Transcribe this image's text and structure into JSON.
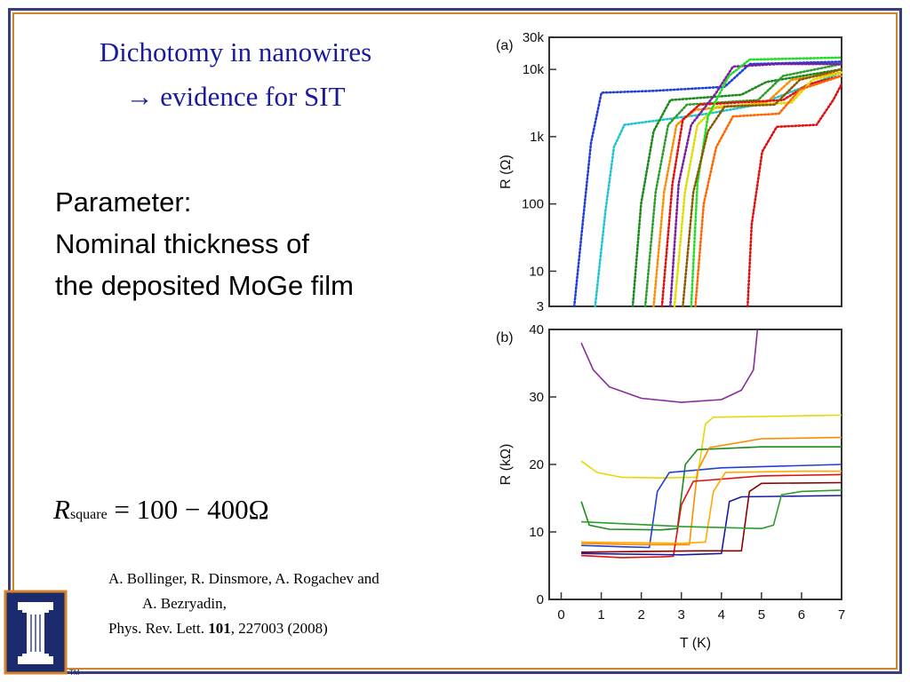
{
  "slide": {
    "title_line1": "Dichotomy in nanowires",
    "title_arrow": "→",
    "title_line2": "evidence for SIT",
    "param_line1": "Parameter:",
    "param_line2": "Nominal thickness of",
    "param_line3": "the deposited MoGe film",
    "formula_R": "R",
    "formula_sub": "square",
    "formula_rest": " = 100 − 400Ω",
    "cite_line1": "A. Bollinger, R. Dinsmore, A. Rogachev and",
    "cite_line2": "A. Bezryadin,",
    "cite_journal": "Phys. Rev. Lett. ",
    "cite_volume": "101",
    "cite_pages": ", 227003 (2008)",
    "logo_tm": "TM"
  },
  "colors": {
    "frame_outer": "#3a3d7a",
    "frame_inner": "#d2842a",
    "title": "#1a1aa0",
    "logo_bg": "#1c2a6e",
    "logo_fg": "#ffffff"
  },
  "chart_data": [
    {
      "type": "line",
      "panel_label": "(a)",
      "xlabel": "",
      "ylabel": "R  (Ω)",
      "yscale": "log",
      "ylim": [
        3,
        30000
      ],
      "xlim": [
        0,
        7
      ],
      "ytick_labels": [
        "30k",
        "10k",
        "1k",
        "100",
        "10",
        "3"
      ],
      "ytick_values": [
        30000,
        10000,
        1000,
        100,
        10,
        3
      ],
      "series": [
        {
          "color": "#1f3fd8",
          "values": [
            [
              0.6,
              3
            ],
            [
              0.8,
              50
            ],
            [
              1.0,
              800
            ],
            [
              1.25,
              4500
            ],
            [
              2.5,
              4800
            ],
            [
              4.2,
              5500
            ],
            [
              4.8,
              12000
            ],
            [
              7,
              13000
            ]
          ]
        },
        {
          "color": "#1fc4d4",
          "values": [
            [
              1.1,
              3
            ],
            [
              1.35,
              80
            ],
            [
              1.55,
              700
            ],
            [
              1.8,
              1500
            ],
            [
              3.8,
              2200
            ],
            [
              5.0,
              3000
            ],
            [
              7,
              9000
            ]
          ]
        },
        {
          "color": "#1a8a1a",
          "values": [
            [
              2.0,
              3
            ],
            [
              2.2,
              100
            ],
            [
              2.5,
              1200
            ],
            [
              2.9,
              3500
            ],
            [
              4.6,
              4200
            ],
            [
              5.2,
              6500
            ],
            [
              7,
              10000
            ]
          ]
        },
        {
          "color": "#2c9e2c",
          "values": [
            [
              2.3,
              3
            ],
            [
              2.55,
              150
            ],
            [
              2.85,
              1500
            ],
            [
              3.3,
              3000
            ],
            [
              5.0,
              3500
            ],
            [
              5.6,
              8000
            ],
            [
              7,
              12000
            ]
          ]
        },
        {
          "color": "#ff8c00",
          "values": [
            [
              2.5,
              3
            ],
            [
              2.75,
              150
            ],
            [
              3.05,
              1500
            ],
            [
              3.5,
              2500
            ],
            [
              5.2,
              3200
            ],
            [
              5.8,
              7000
            ],
            [
              7,
              9000
            ]
          ]
        },
        {
          "color": "#e01010",
          "values": [
            [
              2.7,
              3
            ],
            [
              2.95,
              200
            ],
            [
              3.2,
              1800
            ],
            [
              3.6,
              3000
            ],
            [
              5.6,
              3500
            ],
            [
              6.2,
              6000
            ],
            [
              7,
              8000
            ]
          ]
        },
        {
          "color": "#dddd00",
          "values": [
            [
              3.0,
              3
            ],
            [
              3.25,
              150
            ],
            [
              3.55,
              1500
            ],
            [
              4.0,
              2800
            ],
            [
              5.8,
              3200
            ],
            [
              6.3,
              7000
            ],
            [
              7,
              9000
            ]
          ]
        },
        {
          "color": "#7a1fa0",
          "values": [
            [
              2.9,
              3
            ],
            [
              3.1,
              200
            ],
            [
              3.4,
              1500
            ],
            [
              4.0,
              4500
            ],
            [
              4.4,
              11000
            ],
            [
              5.5,
              12000
            ],
            [
              7,
              12000
            ]
          ]
        },
        {
          "color": "#22dd22",
          "values": [
            [
              3.4,
              3
            ],
            [
              3.55,
              200
            ],
            [
              3.8,
              2000
            ],
            [
              4.3,
              8000
            ],
            [
              4.8,
              14000
            ],
            [
              7,
              15000
            ]
          ]
        },
        {
          "color": "#ff6600",
          "values": [
            [
              3.5,
              3
            ],
            [
              3.7,
              100
            ],
            [
              4.0,
              700
            ],
            [
              4.4,
              2000
            ],
            [
              5.5,
              2200
            ],
            [
              6.0,
              5000
            ],
            [
              7,
              8000
            ]
          ]
        },
        {
          "color": "#8b5a00",
          "values": [
            [
              3.2,
              3
            ],
            [
              3.45,
              150
            ],
            [
              3.8,
              1200
            ],
            [
              4.2,
              2800
            ],
            [
              5.4,
              3000
            ],
            [
              6.0,
              7000
            ],
            [
              7,
              10000
            ]
          ]
        },
        {
          "color": "#e01010",
          "values": [
            [
              4.75,
              3
            ],
            [
              4.85,
              50
            ],
            [
              5.1,
              600
            ],
            [
              5.45,
              1400
            ],
            [
              6.4,
              1500
            ],
            [
              6.8,
              3500
            ],
            [
              7,
              6000
            ]
          ]
        }
      ]
    },
    {
      "type": "line",
      "panel_label": "(b)",
      "xlabel": "T  (K)",
      "ylabel": "R  (kΩ)",
      "xlim": [
        -0.3,
        7
      ],
      "ylim": [
        0,
        40
      ],
      "xtick_labels": [
        "0",
        "1",
        "2",
        "3",
        "4",
        "5",
        "6",
        "7"
      ],
      "xtick_values": [
        0,
        1,
        2,
        3,
        4,
        5,
        6,
        7
      ],
      "ytick_labels": [
        "0",
        "10",
        "20",
        "30",
        "40"
      ],
      "ytick_values": [
        0,
        10,
        20,
        30,
        40
      ],
      "series": [
        {
          "color": "#8a2a9e",
          "values": [
            [
              0.5,
              38
            ],
            [
              0.8,
              34
            ],
            [
              1.2,
              31.5
            ],
            [
              2.0,
              29.8
            ],
            [
              3.0,
              29.2
            ],
            [
              4.0,
              29.6
            ],
            [
              4.5,
              31
            ],
            [
              4.8,
              34
            ],
            [
              4.9,
              40
            ]
          ]
        },
        {
          "color": "#e6d800",
          "values": [
            [
              0.5,
              20.5
            ],
            [
              0.9,
              18.8
            ],
            [
              1.5,
              18.1
            ],
            [
              2.5,
              18.0
            ],
            [
              3.4,
              18.1
            ],
            [
              3.6,
              26
            ],
            [
              3.8,
              27
            ],
            [
              5.0,
              27.1
            ],
            [
              7,
              27.3
            ]
          ]
        },
        {
          "color": "#1a8a1a",
          "values": [
            [
              0.5,
              14.5
            ],
            [
              0.7,
              11
            ],
            [
              1.2,
              10.4
            ],
            [
              2.5,
              10.3
            ],
            [
              2.9,
              10.5
            ],
            [
              3.1,
              20
            ],
            [
              3.4,
              22.2
            ],
            [
              5.0,
              22.6
            ],
            [
              7,
              22.6
            ]
          ]
        },
        {
          "color": "#1f3fd8",
          "values": [
            [
              0.5,
              8.0
            ],
            [
              1.5,
              7.8
            ],
            [
              2.2,
              7.7
            ],
            [
              2.4,
              16
            ],
            [
              2.7,
              18.8
            ],
            [
              4.0,
              19.5
            ],
            [
              7,
              20.0
            ]
          ]
        },
        {
          "color": "#ff8c00",
          "values": [
            [
              0.5,
              8.3
            ],
            [
              2.0,
              8.1
            ],
            [
              3.2,
              8.1
            ],
            [
              3.4,
              19
            ],
            [
              3.7,
              22.5
            ],
            [
              5.0,
              23.8
            ],
            [
              7,
              24.0
            ]
          ]
        },
        {
          "color": "#e01010",
          "values": [
            [
              0.5,
              6.5
            ],
            [
              1.5,
              6.2
            ],
            [
              2.5,
              6.3
            ],
            [
              2.8,
              6.4
            ],
            [
              3.0,
              14
            ],
            [
              3.3,
              17.5
            ],
            [
              5.0,
              18.3
            ],
            [
              7,
              18.5
            ]
          ]
        },
        {
          "color": "#ffaa00",
          "values": [
            [
              0.5,
              8.5
            ],
            [
              3.0,
              8.3
            ],
            [
              3.6,
              8.5
            ],
            [
              3.8,
              16
            ],
            [
              4.1,
              18.8
            ],
            [
              6.0,
              19.0
            ],
            [
              7,
              19.0
            ]
          ]
        },
        {
          "color": "#1a1aa0",
          "values": [
            [
              0.5,
              6.8
            ],
            [
              3.0,
              6.6
            ],
            [
              4.0,
              6.8
            ],
            [
              4.2,
              14.5
            ],
            [
              4.5,
              15.2
            ],
            [
              7,
              15.4
            ]
          ]
        },
        {
          "color": "#8b0000",
          "values": [
            [
              0.5,
              7.0
            ],
            [
              3.5,
              7.2
            ],
            [
              4.5,
              7.2
            ],
            [
              4.7,
              16
            ],
            [
              5.0,
              17.2
            ],
            [
              7,
              17.3
            ]
          ]
        },
        {
          "color": "#2c9e2c",
          "values": [
            [
              0.5,
              11.5
            ],
            [
              3.0,
              10.8
            ],
            [
              5.0,
              10.5
            ],
            [
              5.3,
              11
            ],
            [
              5.5,
              15.5
            ],
            [
              6.0,
              16.0
            ],
            [
              7,
              16.2
            ]
          ]
        }
      ]
    }
  ]
}
